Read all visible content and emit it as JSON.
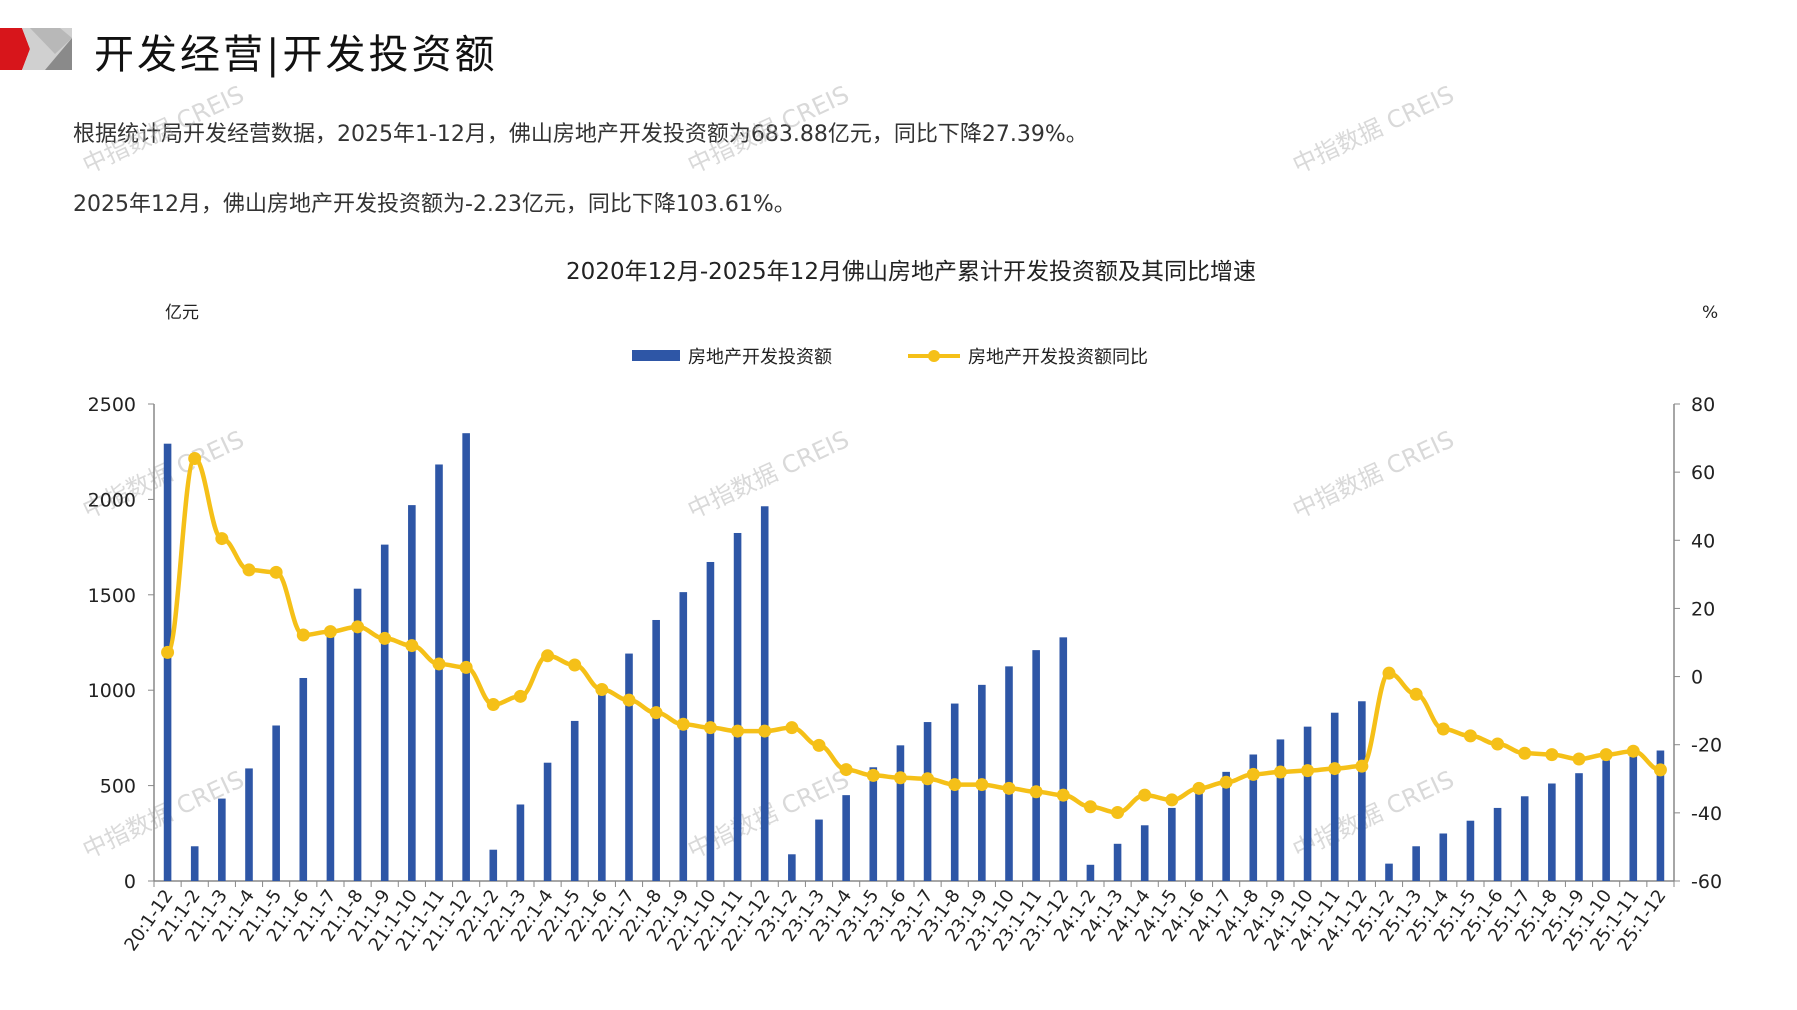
{
  "header": {
    "title": "开发经营|开发投资额"
  },
  "summary": {
    "line1": "根据统计局开发经营数据，2025年1-12月，佛山房地产开发投资额为683.88亿元，同比下降27.39%。",
    "line2": "2025年12月，佛山房地产开发投资额为-2.23亿元，同比下降103.61%。"
  },
  "watermark": "中指数据 CREIS",
  "colors": {
    "bar": "#2E56A6",
    "line": "#F5C018",
    "brand_red": "#D7151B"
  },
  "chart_data": {
    "type": "bar+line",
    "title": "2020年12月-2025年12月佛山房地产累计开发投资额及其同比增速",
    "ylabel_left": "亿元",
    "ylabel_right": "%",
    "ylim_left": [
      0,
      2500
    ],
    "yticks_left": [
      0,
      500,
      1000,
      1500,
      2000,
      2500
    ],
    "ylim_right": [
      -60,
      80
    ],
    "yticks_right": [
      -60,
      -40,
      -20,
      0,
      20,
      40,
      60,
      80
    ],
    "legend_position": "top-center",
    "grid": false,
    "categories": [
      "20:1-12",
      "21:1-2",
      "21:1-3",
      "21:1-4",
      "21:1-5",
      "21:1-6",
      "21:1-7",
      "21:1-8",
      "21:1-9",
      "21:1-10",
      "21:1-11",
      "21:1-12",
      "22:1-2",
      "22:1-3",
      "22:1-4",
      "22:1-5",
      "22:1-6",
      "22:1-7",
      "22:1-8",
      "22:1-9",
      "22:1-10",
      "22:1-11",
      "22:1-12",
      "23:1-2",
      "23:1-3",
      "23:1-4",
      "23:1-5",
      "23:1-6",
      "23:1-7",
      "23:1-8",
      "23:1-9",
      "23:1-10",
      "23:1-11",
      "23:1-12",
      "24:1-2",
      "24:1-3",
      "24:1-4",
      "24:1-5",
      "24:1-6",
      "24:1-7",
      "24:1-8",
      "24:1-9",
      "24:1-10",
      "24:1-11",
      "24:1-12",
      "25:1-2",
      "25:1-3",
      "25:1-4",
      "25:1-5",
      "25:1-6",
      "25:1-7",
      "25:1-8",
      "25:1-9",
      "25:1-10",
      "25:1-11",
      "25:1-12"
    ],
    "series": [
      {
        "name": "房地产开发投资额",
        "type": "bar",
        "axis": "left",
        "values": [
          2292,
          182,
          432,
          590,
          815,
          1064,
          1295,
          1532,
          1763,
          1970,
          2183,
          2347,
          164,
          401,
          620,
          839,
          985,
          1192,
          1368,
          1514,
          1672,
          1824,
          1964,
          140,
          322,
          450,
          596,
          711,
          833,
          930,
          1028,
          1125,
          1210,
          1277,
          85,
          195,
          292,
          383,
          468,
          572,
          663,
          742,
          809,
          882,
          942,
          91,
          182,
          249,
          316,
          383,
          444,
          511,
          565,
          632,
          686.11,
          683.88
        ]
      },
      {
        "name": "房地产开发投资额同比",
        "type": "line",
        "axis": "right",
        "values": [
          7.1,
          64,
          40.5,
          31.3,
          30.6,
          12.2,
          13.2,
          14.6,
          11.2,
          9.1,
          3.7,
          2.7,
          -8.2,
          -5.8,
          6.1,
          3.4,
          -3.8,
          -6.9,
          -10.6,
          -14,
          -15,
          -16,
          -16,
          -15,
          -20.2,
          -27.3,
          -29,
          -29.7,
          -30,
          -31.7,
          -31.7,
          -32.8,
          -33.8,
          -34.8,
          -38.2,
          -39.9,
          -34.8,
          -36.2,
          -32.8,
          -31,
          -28.7,
          -28,
          -27.6,
          -27,
          -26.3,
          1,
          -5.2,
          -15.4,
          -17.4,
          -19.8,
          -22.5,
          -22.9,
          -24.2,
          -22.9,
          -21.9,
          -27.39
        ]
      }
    ]
  }
}
